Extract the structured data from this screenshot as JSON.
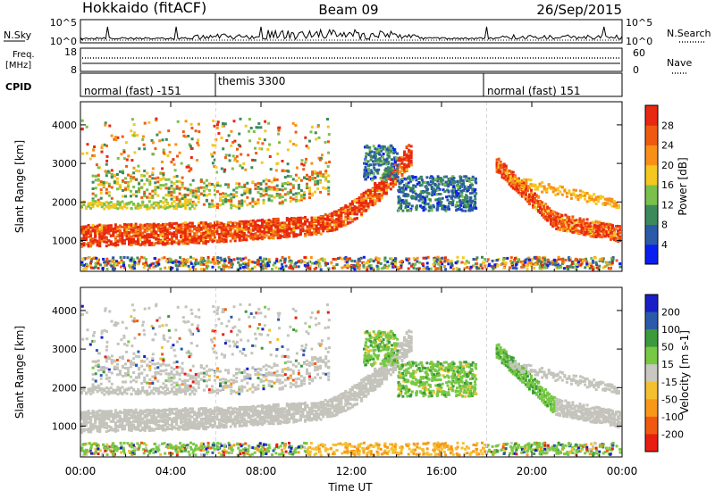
{
  "header": {
    "station": "Hokkaido (fitACF)",
    "beam": "Beam 09",
    "date": "26/Sep/2015"
  },
  "strips": {
    "nsky_label": "N.Sky",
    "nsky_ticks": [
      "10^5",
      "10^0"
    ],
    "nsearch_label": "N.Search",
    "nsearch_ticks": [
      "10^5",
      "10^0"
    ],
    "freq_label_1": "Freq.",
    "freq_label_2": "[MHz]",
    "freq_ticks": [
      "18",
      "8"
    ],
    "nave_label": "Nave",
    "nave_ticks": [
      "60",
      "0"
    ],
    "cpid_label": "CPID",
    "cpid_segments": [
      "normal (fast) -151",
      "themis 3300",
      "normal (fast) 151"
    ]
  },
  "colors": {
    "power_scale": [
      "#0a1ef0",
      "#2a5aa8",
      "#3c8a5c",
      "#7ac04a",
      "#f4c820",
      "#f89018",
      "#f05a10",
      "#e82810"
    ],
    "velocity_scale": [
      "#e81e10",
      "#f05a10",
      "#f89818",
      "#f4c030",
      "#c8c8c0",
      "#78c844",
      "#3c9a3c",
      "#2a5aa8",
      "#1a1ec8"
    ],
    "ground_scatter": "#c4c4bc"
  },
  "chart_data": [
    {
      "type": "heatmap",
      "name": "power",
      "ylabel": "Slant Range [km]",
      "yticks": [
        "1000",
        "2000",
        "3000",
        "4000"
      ],
      "ylim": [
        200,
        4600
      ],
      "colorbar_label": "Power [dB]",
      "colorbar_ticks": [
        "4",
        "8",
        "12",
        "16",
        "20",
        "24",
        "28"
      ],
      "features": [
        {
          "x": [
            0,
            2,
            4,
            6,
            8,
            10,
            12,
            13,
            14,
            14.5
          ],
          "y": [
            1150,
            1150,
            1200,
            1300,
            1350,
            1500,
            2000,
            2300,
            2700,
            3400
          ]
        },
        {
          "x": [
            18.5,
            19,
            20,
            21,
            22,
            23,
            24
          ],
          "y": [
            3000,
            2600,
            1900,
            1500,
            1350,
            1200,
            1100
          ]
        }
      ]
    },
    {
      "type": "heatmap",
      "name": "velocity",
      "ylabel": "Slant Range [km]",
      "yticks": [
        "1000",
        "2000",
        "3000",
        "4000"
      ],
      "ylim": [
        200,
        4600
      ],
      "colorbar_label": "Velocity [m s-1]",
      "colorbar_ticks": [
        "200",
        "100",
        "50",
        "15",
        "-15",
        "-50",
        "-100",
        "-200"
      ],
      "x_ticks": [
        "00:00",
        "04:00",
        "08:00",
        "12:00",
        "16:00",
        "20:00",
        "00:00"
      ],
      "xlabel": "Time UT"
    }
  ]
}
